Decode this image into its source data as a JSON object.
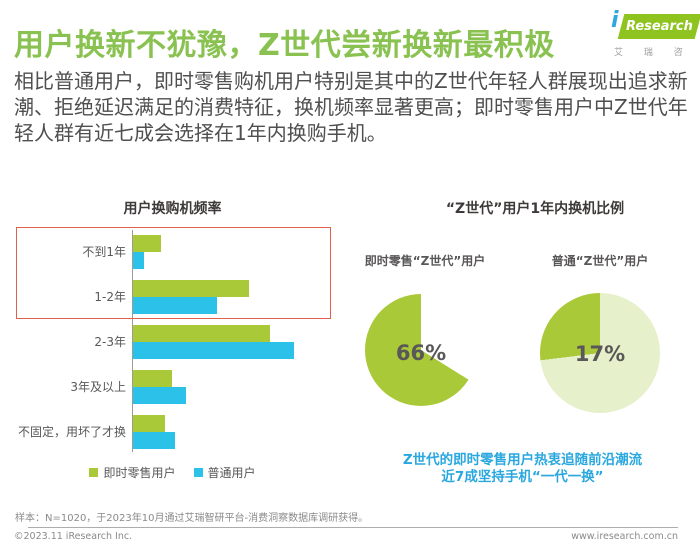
{
  "header": {
    "title": "用户换新不犹豫，Z世代尝新换新最积极",
    "logo": {
      "i": "i",
      "brand": "Research",
      "subtext": "艾 瑞 咨 询"
    }
  },
  "intro": {
    "text": "相比普通用户，即时零售购机用户特别是其中的Z世代年轻人群展现出追求新潮、拒绝延迟满足的消费特征，换机频率显著更高；即时零售用户中Z世代年轻人群有近七成会选择在1年内换购手机。"
  },
  "chart_data": [
    {
      "type": "bar",
      "orientation": "horizontal",
      "title": "用户换购机频率",
      "categories": [
        "不到1年",
        "1-2年",
        "2-3年",
        "3年及以上",
        "不固定，用坏了才换"
      ],
      "series": [
        {
          "name": "即时零售用户",
          "color": "#A9C938",
          "values": [
            8,
            33,
            39,
            11,
            9
          ]
        },
        {
          "name": "普通用户",
          "color": "#2BC1E8",
          "values": [
            3,
            24,
            46,
            15,
            12
          ]
        }
      ],
      "unit": "%",
      "values_estimated_from_bar_lengths": true,
      "value_axis_visible": false,
      "legend_position": "bottom",
      "highlight_box": {
        "color": "#E0604E",
        "rows": [
          "不到1年",
          "1-2年"
        ]
      }
    },
    {
      "type": "pie",
      "title": "“Z世代”用户1年内换机比例",
      "pies": [
        {
          "label": "即时零售“Z世代”用户",
          "value": 66,
          "unit": "%",
          "display_label": "66%",
          "slice_color": "#A9C938",
          "remainder_color": "#FFFFFF",
          "drawn_slice": {
            "from_deg": 122,
            "to_deg": 360
          }
        },
        {
          "label": "普通“Z世代”用户",
          "value": 17,
          "unit": "%",
          "display_label": "17%",
          "slice_color": "#A9C938",
          "remainder_color": "#E6F0CA",
          "drawn_slice": {
            "from_deg": 263,
            "to_deg": 360
          }
        }
      ],
      "annotation": [
        "Z世代的即时零售用户热衷追随前沿潮流",
        "近7成坚持手机“一代一换”"
      ]
    }
  ],
  "footer": {
    "sample_note": "样本：N=1020，于2023年10月通过艾瑞智研平台-消费洞察数据库调研获得。",
    "copyright": "©2023.11 iResearch Inc.",
    "website": "www.iresearch.com.cn"
  },
  "colors": {
    "title_green": "#89C250",
    "logo_green": "#8FC31F",
    "logo_i_blue": "#2EA7E0",
    "series_green": "#A9C938",
    "series_blue": "#2BC1E8",
    "pie_light_green": "#E6F0CA",
    "note_blue": "#29A7DF",
    "highlight_red": "#E0604E"
  }
}
